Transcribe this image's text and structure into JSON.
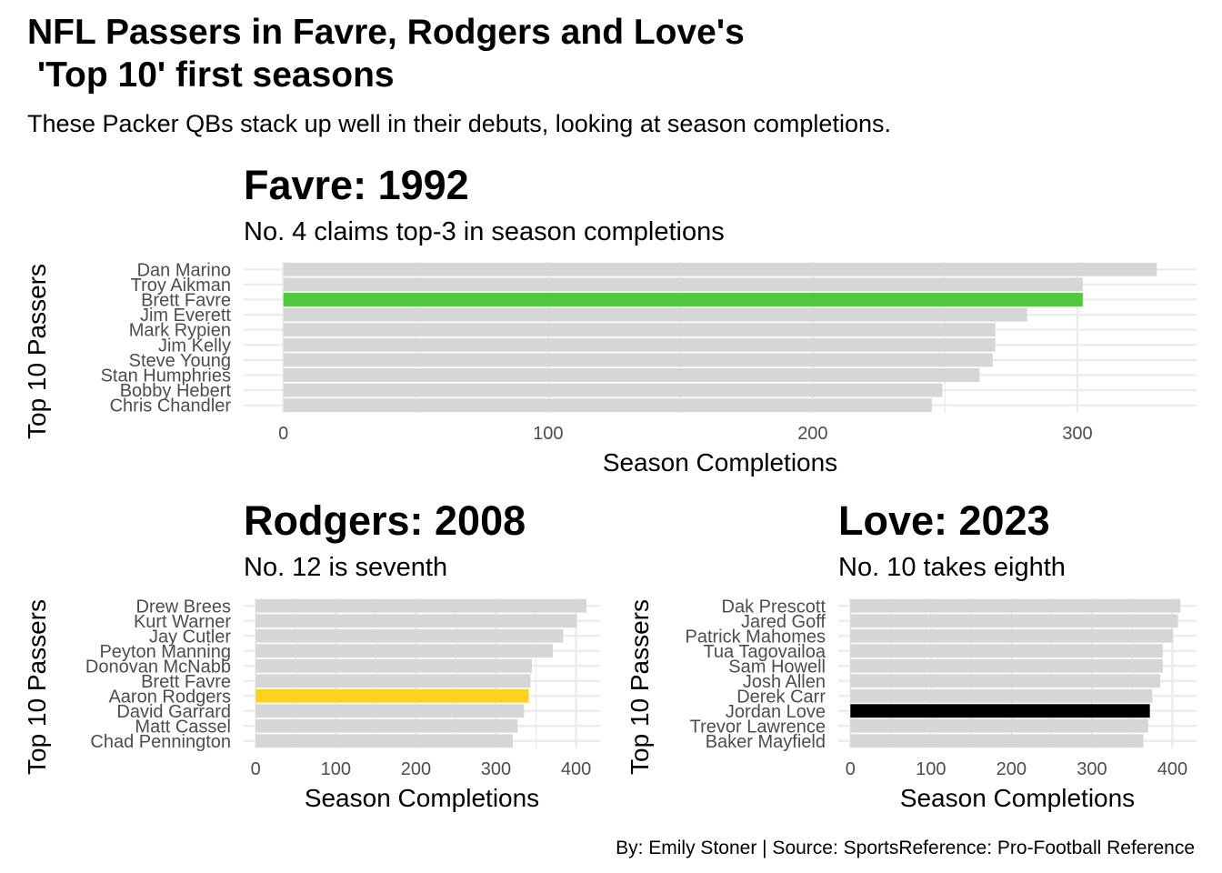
{
  "title": "NFL Passers in Favre, Rodgers and Love's\n 'Top 10' first seasons",
  "subtitle": "These Packer QBs stack up well in their debuts, looking at season completions.",
  "caption": "By: Emily Stoner | Source: SportsReference: Pro-Football Reference",
  "colors": {
    "bar_default": "#d6d6d6",
    "grid": "#ebebeb",
    "axis_text": "#4d4d4d"
  },
  "panels": [
    {
      "title": "Favre: 1992",
      "subtitle": "No. 4 claims top-3 in season completions",
      "ylabel": "Top 10 Passers"
    },
    {
      "title": "Rodgers: 2008",
      "subtitle": "No. 12 is seventh",
      "ylabel": "Top 10 Passers"
    },
    {
      "title": "Love: 2023",
      "subtitle": "No. 10 takes eighth",
      "ylabel": "Top 10 Passers"
    }
  ],
  "chart_data": [
    {
      "type": "bar",
      "orientation": "horizontal",
      "title": "Favre: 1992",
      "subtitle": "No. 4 claims top-3 in season completions",
      "xlabel": "Season Completions",
      "ylabel": "Top 10 Passers",
      "categories": [
        "Dan Marino",
        "Troy Aikman",
        "Brett Favre",
        "Jim Everett",
        "Mark Rypien",
        "Jim Kelly",
        "Steve Young",
        "Stan Humphries",
        "Bobby Hebert",
        "Chris Chandler"
      ],
      "values": [
        330,
        302,
        302,
        281,
        269,
        269,
        268,
        263,
        249,
        245
      ],
      "highlight": "Brett Favre",
      "highlight_color": "#52c840",
      "xticks": [
        0,
        100,
        200,
        300
      ],
      "xlim": [
        -15,
        345
      ],
      "grid": true
    },
    {
      "type": "bar",
      "orientation": "horizontal",
      "title": "Rodgers: 2008",
      "subtitle": "No. 12 is seventh",
      "xlabel": "Season Completions",
      "ylabel": "Top 10 Passers",
      "categories": [
        "Drew Brees",
        "Kurt Warner",
        "Jay Cutler",
        "Peyton Manning",
        "Donovan McNabb",
        "Brett Favre",
        "Aaron Rodgers",
        "David Garrard",
        "Matt Cassel",
        "Chad Pennington"
      ],
      "values": [
        413,
        401,
        384,
        371,
        345,
        343,
        341,
        335,
        327,
        321
      ],
      "highlight": "Aaron Rodgers",
      "highlight_color": "#ffd21f",
      "xticks": [
        0,
        100,
        200,
        300,
        400
      ],
      "xlim": [
        -15,
        430
      ],
      "grid": true
    },
    {
      "type": "bar",
      "orientation": "horizontal",
      "title": "Love: 2023",
      "subtitle": "No. 10 takes eighth",
      "xlabel": "Season Completions",
      "ylabel": "Top 10 Passers",
      "categories": [
        "Dak Prescott",
        "Jared Goff",
        "Patrick Mahomes",
        "Tua Tagovailoa",
        "Sam Howell",
        "Josh Allen",
        "Derek Carr",
        "Jordan Love",
        "Trevor Lawrence",
        "Baker Mayfield"
      ],
      "values": [
        410,
        407,
        401,
        388,
        388,
        385,
        375,
        372,
        370,
        364
      ],
      "highlight": "Jordan Love",
      "highlight_color": "#000000",
      "xticks": [
        0,
        100,
        200,
        300,
        400
      ],
      "xlim": [
        -15,
        430
      ],
      "grid": true
    }
  ]
}
